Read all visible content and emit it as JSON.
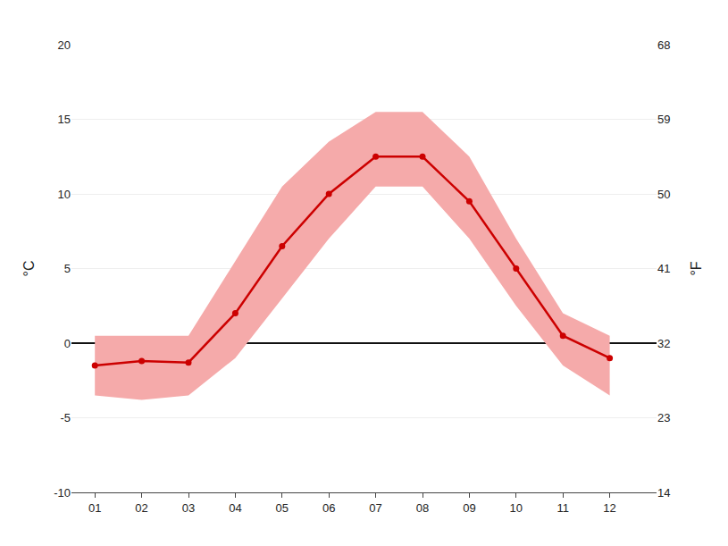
{
  "chart_data": {
    "type": "line",
    "x": [
      1,
      2,
      3,
      4,
      5,
      6,
      7,
      8,
      9,
      10,
      11,
      12
    ],
    "series": [
      {
        "type": "band",
        "color": "#f5aaaa",
        "lower": [
          -3.5,
          -3.8,
          -3.5,
          -1.0,
          3.0,
          7.0,
          10.5,
          10.5,
          7.0,
          2.5,
          -1.5,
          -3.5
        ],
        "upper": [
          0.5,
          0.5,
          0.5,
          5.5,
          10.5,
          13.5,
          15.5,
          15.5,
          12.5,
          7.0,
          2.0,
          0.5
        ]
      },
      {
        "type": "line",
        "color": "#cc0000",
        "marker": "circle",
        "values": [
          -1.5,
          -1.2,
          -1.3,
          2.0,
          6.5,
          10.0,
          12.5,
          12.5,
          9.5,
          5.0,
          0.5,
          -1.0
        ]
      }
    ],
    "xlim": [
      0.5,
      13.0
    ],
    "xticks": [
      {
        "value": 1,
        "label": "01"
      },
      {
        "value": 2,
        "label": "02"
      },
      {
        "value": 3,
        "label": "03"
      },
      {
        "value": 4,
        "label": "04"
      },
      {
        "value": 5,
        "label": "05"
      },
      {
        "value": 6,
        "label": "06"
      },
      {
        "value": 7,
        "label": "07"
      },
      {
        "value": 8,
        "label": "08"
      },
      {
        "value": 9,
        "label": "09"
      },
      {
        "value": 10,
        "label": "10"
      },
      {
        "value": 11,
        "label": "11"
      },
      {
        "value": 12,
        "label": "12"
      }
    ],
    "ylim": [
      -10,
      20
    ],
    "yticks": [
      -10,
      -5,
      0,
      5,
      10,
      15,
      20
    ],
    "ylabel": "°C",
    "y2lim": [
      14,
      68
    ],
    "y2ticks": [
      14,
      23,
      32,
      41,
      50,
      59,
      68
    ],
    "y2label": "°F",
    "grid": true
  }
}
